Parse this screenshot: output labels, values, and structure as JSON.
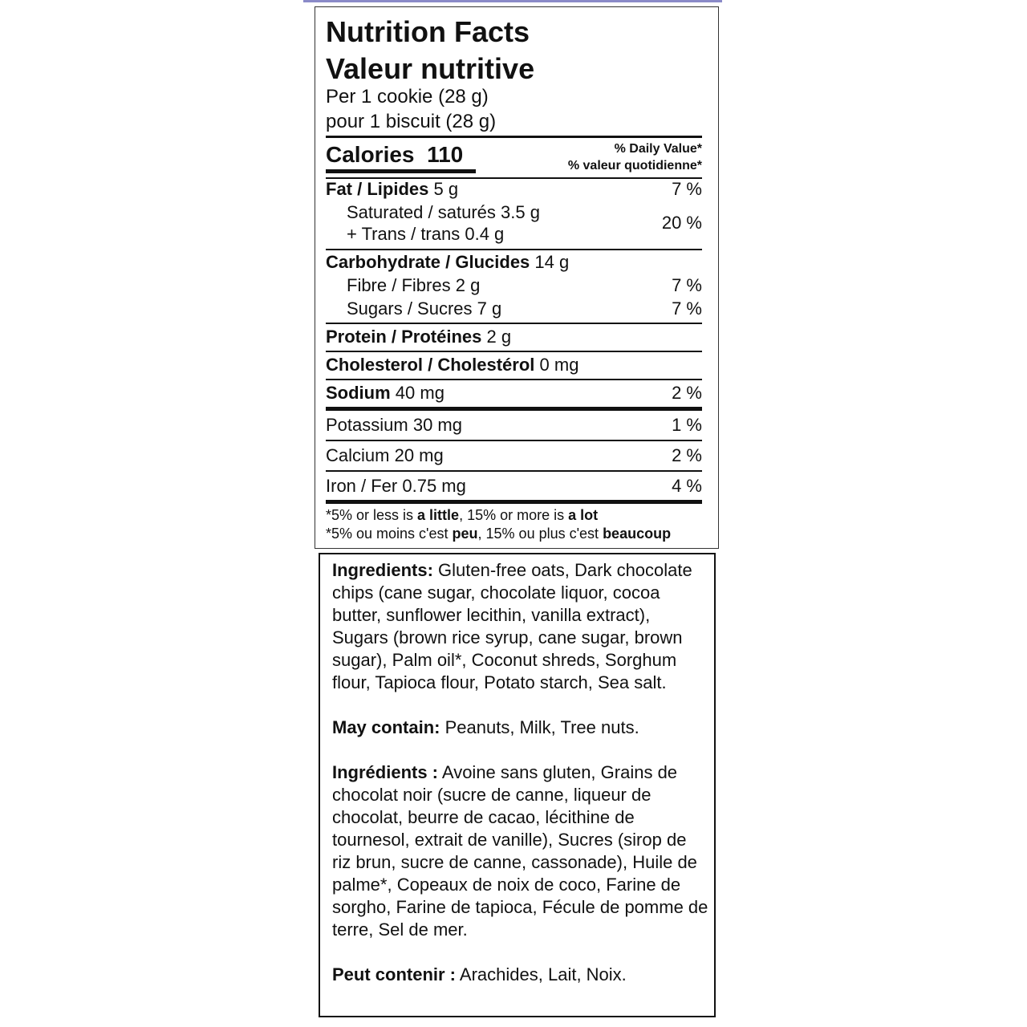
{
  "nutrition_facts": {
    "title_en": "Nutrition Facts",
    "title_fr": "Valeur nutritive",
    "serving_en": "Per 1 cookie (28 g)",
    "serving_fr": "pour 1 biscuit (28 g)",
    "calories_label": "Calories",
    "calories_value": "110",
    "dv_header_en": "% Daily Value*",
    "dv_header_fr": "% valeur quotidienne*",
    "rows": [
      {
        "label": "Fat / Lipides",
        "amount": "5 g",
        "dv": "7 %"
      },
      {
        "label": "Saturated / saturés",
        "amount": "3.5 g",
        "dv": "20 %"
      },
      {
        "label": "+ Trans / trans",
        "amount": "0.4 g"
      },
      {
        "label": "Carbohydrate / Glucides",
        "amount": "14 g"
      },
      {
        "label": "Fibre / Fibres",
        "amount": "2 g",
        "dv": "7 %"
      },
      {
        "label": "Sugars / Sucres",
        "amount": "7 g",
        "dv": "7 %"
      },
      {
        "label": "Protein / Protéines",
        "amount": "2 g"
      },
      {
        "label": "Cholesterol / Cholestérol",
        "amount": "0 mg"
      },
      {
        "label": "Sodium",
        "amount": "40 mg",
        "dv": "2 %"
      },
      {
        "label": "Potassium",
        "amount": "30 mg",
        "dv": "1 %"
      },
      {
        "label": "Calcium",
        "amount": "20 mg",
        "dv": "2 %"
      },
      {
        "label": "Iron / Fer",
        "amount": "0.75 mg",
        "dv": "4 %"
      }
    ],
    "footnote_en": [
      "*5% or less is ",
      "a little",
      ", 15% or more is ",
      "a lot"
    ],
    "footnote_fr": [
      "*5% ou moins c'est ",
      "peu",
      ", 15% ou plus c'est ",
      "beaucoup"
    ]
  },
  "ingredients": {
    "en_label": "Ingredients:",
    "en_text": "Gluten-free oats, Dark chocolate chips (cane sugar, chocolate liquor, cocoa butter, sunflower lecithin, vanilla extract), Sugars (brown rice syrup, cane sugar, brown sugar), Palm oil*, Coconut shreds, Sorghum flour, Tapioca flour, Potato starch, Sea salt.",
    "may_contain_label": "May contain:",
    "may_contain_text": "Peanuts, Milk, Tree nuts.",
    "fr_label": "Ingrédients :",
    "fr_text": "Avoine sans gluten, Grains de chocolat noir (sucre de canne, liqueur de chocolat, beurre de cacao, lécithine de tournesol, extrait de vanille), Sucres (sirop de riz brun, sucre de canne, cassonade), Huile de palme*, Copeaux de noix de coco, Farine de sorgho, Farine de tapioca, Fécule de pomme de terre, Sel de mer.",
    "peut_contenir_label": "Peut contenir :",
    "peut_contenir_text": "Arachides, Lait, Noix."
  }
}
